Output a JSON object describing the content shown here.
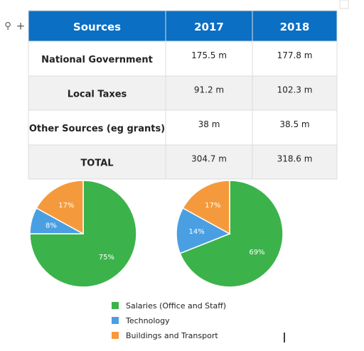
{
  "table": {
    "header": [
      "Sources",
      "2017",
      "2018"
    ],
    "rows": [
      [
        "National Government",
        "175.5 m",
        "177.8 m"
      ],
      [
        "Local Taxes",
        "91.2 m",
        "102.3 m"
      ],
      [
        "Other Sources (eg grants)",
        "38 m",
        "38.5 m"
      ],
      [
        "TOTAL",
        "304.7 m",
        "318.6 m"
      ]
    ]
  },
  "chart_data": [
    {
      "type": "pie",
      "categories": [
        "Salaries (Office and Staff)",
        "Technology",
        "Buildings and Transport"
      ],
      "colors": [
        "#3bb34a",
        "#4a9fe3",
        "#f59a3c"
      ],
      "values": [
        75,
        8,
        17
      ],
      "value_labels": [
        "75%",
        "8%",
        "17%"
      ]
    },
    {
      "type": "pie",
      "values": [
        69,
        14,
        17
      ],
      "value_labels": [
        "69%",
        "14%",
        "17%"
      ]
    }
  ]
}
